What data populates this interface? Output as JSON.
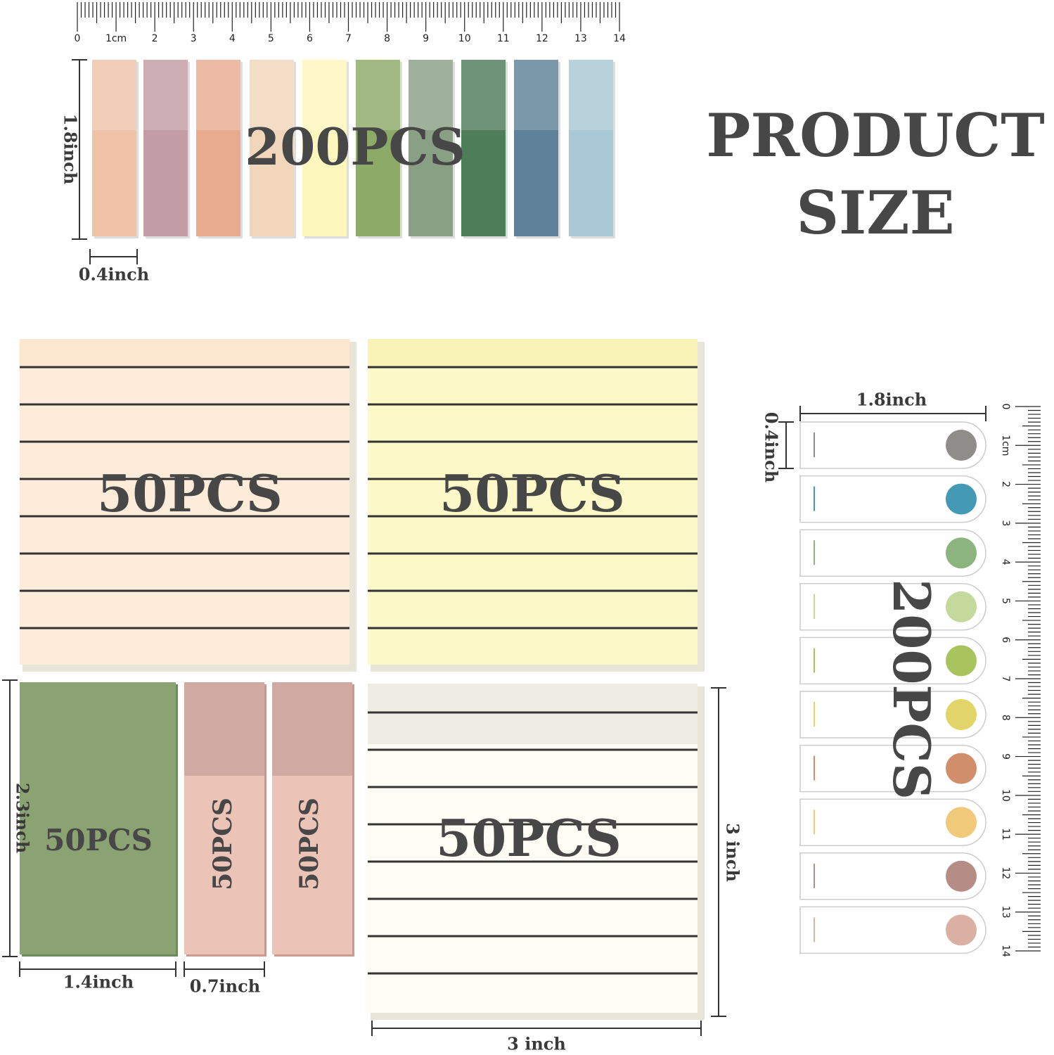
{
  "top_ruler": {
    "labels": [
      "0",
      "1cm",
      "2",
      "3",
      "4",
      "5",
      "6",
      "7",
      "8",
      "9",
      "10",
      "11",
      "12",
      "13",
      "14"
    ]
  },
  "flags_panel": {
    "height_label": "1.8inch",
    "width_label": "0.4inch",
    "count": "200PCS"
  },
  "title": {
    "lines": [
      "PRODUCT",
      "SIZE"
    ]
  },
  "notes": [
    {
      "count": "50PCS"
    },
    {
      "count": "50PCS"
    },
    {
      "count": "50PCS",
      "width_label": "3 inch",
      "height_label": "3 inch"
    }
  ],
  "small_notes": {
    "green": {
      "count": "50PCS",
      "height_label": "2.3inch",
      "width_label": "1.4inch"
    },
    "pink": {
      "counts": [
        "50PCS",
        "50PCS"
      ],
      "width_label": "0.7inch"
    }
  },
  "tabs_panel": {
    "width_label": "1.8inch",
    "height_label": "0.4inch",
    "count": "200PCS"
  },
  "side_ruler": {
    "labels": [
      "0",
      "1cm",
      "2",
      "3",
      "4",
      "5",
      "6",
      "7",
      "8",
      "9",
      "10",
      "11",
      "12",
      "13",
      "14"
    ]
  }
}
